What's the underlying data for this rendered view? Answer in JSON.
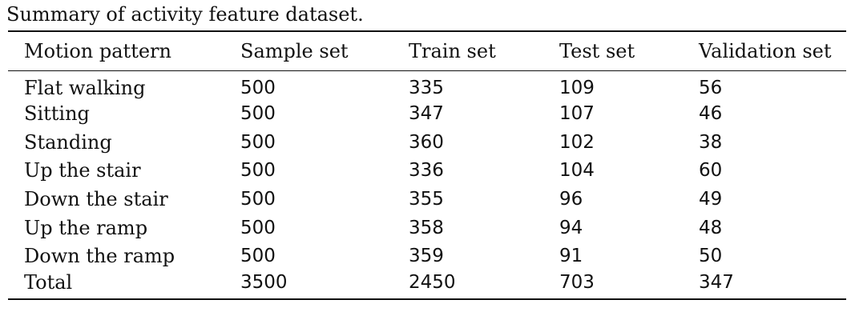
{
  "caption": "Summary of activity feature dataset.",
  "table": {
    "headers": [
      "Motion pattern",
      "Sample set",
      "Train set",
      "Test set",
      "Validation set"
    ],
    "rows": [
      [
        "Flat walking",
        "500",
        "335",
        "109",
        "56"
      ],
      [
        "Sitting",
        "500",
        "347",
        "107",
        "46"
      ],
      [
        "Standing",
        "500",
        "360",
        "102",
        "38"
      ],
      [
        "Up the stair",
        "500",
        "336",
        "104",
        "60"
      ],
      [
        "Down the stair",
        "500",
        "355",
        "96",
        "49"
      ],
      [
        "Up the ramp",
        "500",
        "358",
        "94",
        "48"
      ],
      [
        "Down the ramp",
        "500",
        "359",
        "91",
        "50"
      ],
      [
        "Total",
        "3500",
        "2450",
        "703",
        "347"
      ]
    ]
  }
}
